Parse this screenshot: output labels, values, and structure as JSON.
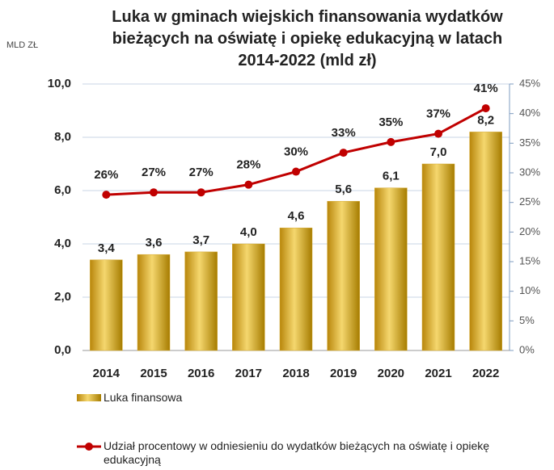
{
  "chart_data": {
    "type": "bar",
    "title": "Luka w gminach wiejskich finansowania wydatków bieżących na oświatę i opiekę edukacyjną w latach 2014-2022 (mld zł)",
    "y_axis_label": "MLD ZŁ",
    "categories": [
      "2014",
      "2015",
      "2016",
      "2017",
      "2018",
      "2019",
      "2020",
      "2021",
      "2022"
    ],
    "series": [
      {
        "name": "Luka finansowa",
        "type": "bar",
        "color": "#d4a72c",
        "values": [
          3.4,
          3.6,
          3.7,
          4.0,
          4.6,
          5.6,
          6.1,
          7.0,
          8.2
        ],
        "value_labels": [
          "3,4",
          "3,6",
          "3,7",
          "4,0",
          "4,6",
          "5,6",
          "6,1",
          "7,0",
          "8,2"
        ]
      },
      {
        "name": "Udział procentowy w odniesieniu do wydatków bieżących na oświatę i opiekę edukacyjną",
        "type": "line",
        "axis": "y2",
        "color": "#c00000",
        "values": [
          26.3,
          26.7,
          26.7,
          28.0,
          30.2,
          33.4,
          35.2,
          36.6,
          40.9
        ],
        "value_labels": [
          "26%",
          "27%",
          "27%",
          "28%",
          "30%",
          "33%",
          "35%",
          "37%",
          "41%"
        ]
      }
    ],
    "ylim": [
      0,
      10
    ],
    "yticks": [
      {
        "value": 0,
        "label": "0,0"
      },
      {
        "value": 2,
        "label": "2,0"
      },
      {
        "value": 4,
        "label": "4,0"
      },
      {
        "value": 6,
        "label": "6,0"
      },
      {
        "value": 8,
        "label": "8,0"
      },
      {
        "value": 10,
        "label": "10,0"
      }
    ],
    "y2lim": [
      0,
      45
    ],
    "y2ticks": [
      {
        "value": 0,
        "label": "0%"
      },
      {
        "value": 5,
        "label": "5%"
      },
      {
        "value": 10,
        "label": "10%"
      },
      {
        "value": 15,
        "label": "15%"
      },
      {
        "value": 20,
        "label": "20%"
      },
      {
        "value": 25,
        "label": "25%"
      },
      {
        "value": 30,
        "label": "30%"
      },
      {
        "value": 35,
        "label": "35%"
      },
      {
        "value": 40,
        "label": "40%"
      },
      {
        "value": 45,
        "label": "45%"
      }
    ],
    "grid": true
  }
}
